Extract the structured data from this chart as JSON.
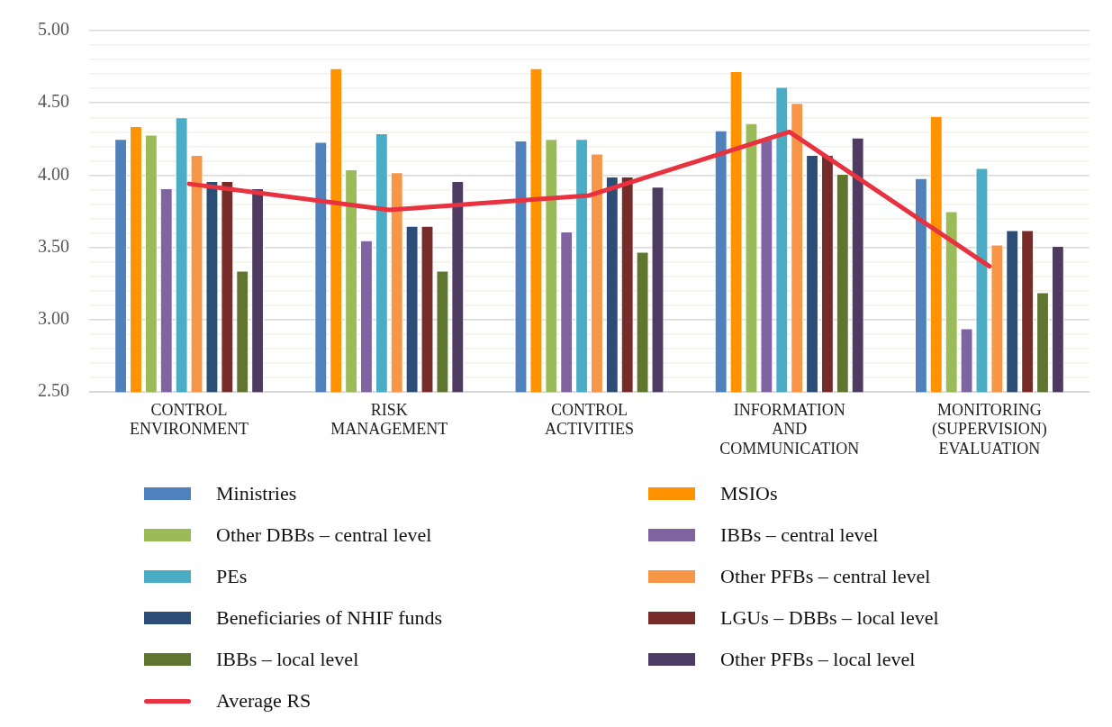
{
  "chart_data": {
    "type": "bar",
    "categories": [
      "CONTROL ENVIRONMENT",
      "RISK MANAGEMENT",
      "CONTROL ACTIVITIES",
      "INFORMATION AND COMMUNICATION",
      "MONITORING (SUPERVISION) EVALUATION"
    ],
    "series": [
      {
        "name": "Ministries",
        "color": "#4f81bd",
        "values": [
          4.25,
          4.23,
          4.24,
          4.31,
          3.98
        ]
      },
      {
        "name": "MSIOs",
        "color": "#ff9200",
        "values": [
          4.34,
          4.74,
          4.74,
          4.72,
          4.41
        ]
      },
      {
        "name": "Other DBBs – central level",
        "color": "#9bbb59",
        "values": [
          4.28,
          4.04,
          4.25,
          4.36,
          3.75
        ]
      },
      {
        "name": "IBBs – central level",
        "color": "#8064a2",
        "values": [
          3.91,
          3.55,
          3.61,
          4.25,
          2.94
        ]
      },
      {
        "name": "PEs",
        "color": "#4bacc6",
        "values": [
          4.4,
          4.29,
          4.25,
          4.61,
          4.05
        ]
      },
      {
        "name": "Other PFBs – central level",
        "color": "#f79646",
        "values": [
          4.14,
          4.02,
          4.15,
          4.5,
          3.52
        ]
      },
      {
        "name": "Beneficiaries of NHIF funds",
        "color": "#2c4d75",
        "values": [
          3.96,
          3.65,
          3.99,
          4.14,
          3.62
        ]
      },
      {
        "name": "LGUs – DBBs – local level",
        "color": "#772c2a",
        "values": [
          3.96,
          3.65,
          3.99,
          4.14,
          3.62
        ]
      },
      {
        "name": "IBBs – local level",
        "color": "#5f7530",
        "values": [
          3.34,
          3.34,
          3.47,
          4.01,
          3.19
        ]
      },
      {
        "name": "Other PFBs – local level",
        "color": "#4d3b62",
        "values": [
          3.91,
          3.96,
          3.92,
          4.26,
          3.51
        ]
      },
      {
        "name": "Average RS",
        "type": "line",
        "color": "#e8323f",
        "values": [
          3.94,
          3.76,
          3.86,
          4.3,
          3.37
        ]
      }
    ],
    "ylim": [
      2.5,
      5
    ],
    "yticks": [
      {
        "value": 2.5,
        "label": "2.50"
      },
      {
        "value": 2.6,
        "label": null
      },
      {
        "value": 2.7,
        "label": null
      },
      {
        "value": 2.8,
        "label": null
      },
      {
        "value": 2.9,
        "label": null
      },
      {
        "value": 3,
        "label": "3.00"
      },
      {
        "value": 3.1,
        "label": null
      },
      {
        "value": 3.2,
        "label": null
      },
      {
        "value": 3.3,
        "label": null
      },
      {
        "value": 3.4,
        "label": null
      },
      {
        "value": 3.5,
        "label": "3.50"
      },
      {
        "value": 3.6,
        "label": null
      },
      {
        "value": 3.7,
        "label": null
      },
      {
        "value": 3.8,
        "label": null
      },
      {
        "value": 3.9,
        "label": null
      },
      {
        "value": 4,
        "label": "4.00"
      },
      {
        "value": 4.1,
        "label": null
      },
      {
        "value": 4.2,
        "label": null
      },
      {
        "value": 4.3,
        "label": null
      },
      {
        "value": 4.4,
        "label": null
      },
      {
        "value": 4.5,
        "label": "4.50"
      },
      {
        "value": 4.6,
        "label": null
      },
      {
        "value": 4.7,
        "label": null
      },
      {
        "value": 4.8,
        "label": null
      },
      {
        "value": 4.9,
        "label": null
      },
      {
        "value": 5,
        "label": "5.00"
      }
    ],
    "grid": "y",
    "legend": "bottom",
    "marker": "none"
  }
}
